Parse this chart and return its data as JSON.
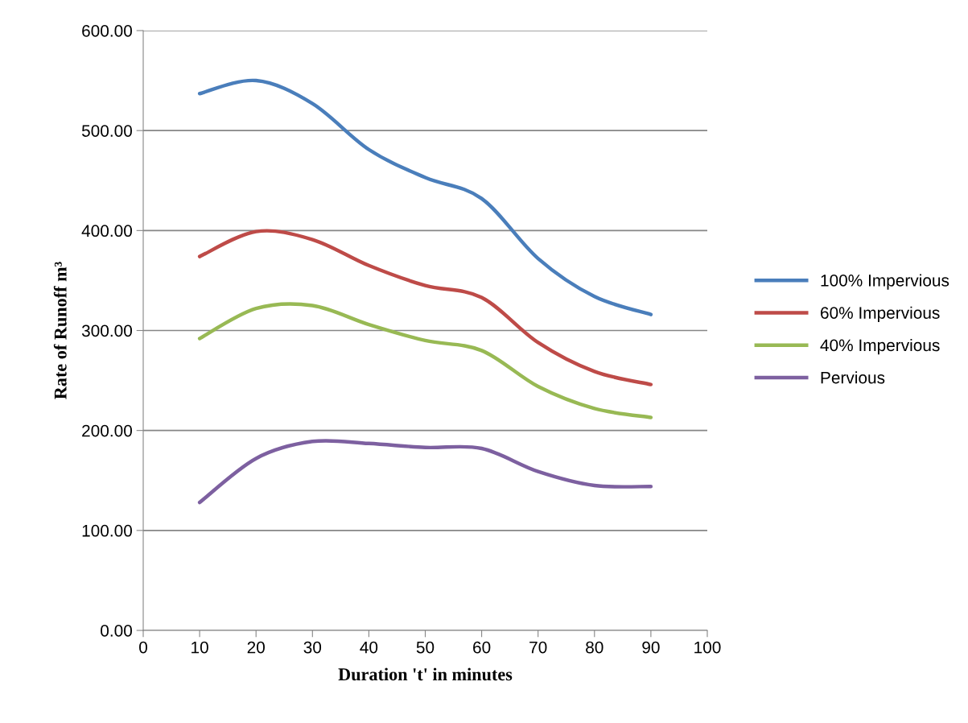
{
  "chart_data": {
    "type": "line",
    "xlabel": "Duration 't' in minutes",
    "ylabel": "Rate of Runoff m³",
    "x": [
      10,
      20,
      30,
      40,
      50,
      60,
      70,
      80,
      90
    ],
    "series": [
      {
        "name": "100% Impervious",
        "color": "#4a7ebb",
        "values": [
          537,
          550,
          527,
          481,
          453,
          432,
          372,
          334,
          316
        ]
      },
      {
        "name": "60% Impervious",
        "color": "#be4b48",
        "values": [
          374,
          399,
          391,
          365,
          345,
          333,
          288,
          259,
          246
        ]
      },
      {
        "name": "40% Impervious",
        "color": "#98b954",
        "values": [
          292,
          322,
          325,
          306,
          290,
          280,
          244,
          222,
          213
        ]
      },
      {
        "name": "Pervious",
        "color": "#7d60a0",
        "values": [
          128,
          172,
          189,
          187,
          183,
          182,
          159,
          145,
          144
        ]
      }
    ],
    "xlim": [
      0,
      100
    ],
    "xticks": [
      0,
      10,
      20,
      30,
      40,
      50,
      60,
      70,
      80,
      90,
      100
    ],
    "ylim": [
      0,
      600
    ],
    "yticks": [
      {
        "value": 0,
        "label": "0.00"
      },
      {
        "value": 100,
        "label": "100.00"
      },
      {
        "value": 200,
        "label": "200.00"
      },
      {
        "value": 300,
        "label": "300.00"
      },
      {
        "value": 400,
        "label": "400.00"
      },
      {
        "value": 500,
        "label": "500.00"
      },
      {
        "value": 600,
        "label": "600.00"
      }
    ],
    "grid": "y",
    "legend": "right",
    "marker": "none",
    "line_style": "solid"
  }
}
